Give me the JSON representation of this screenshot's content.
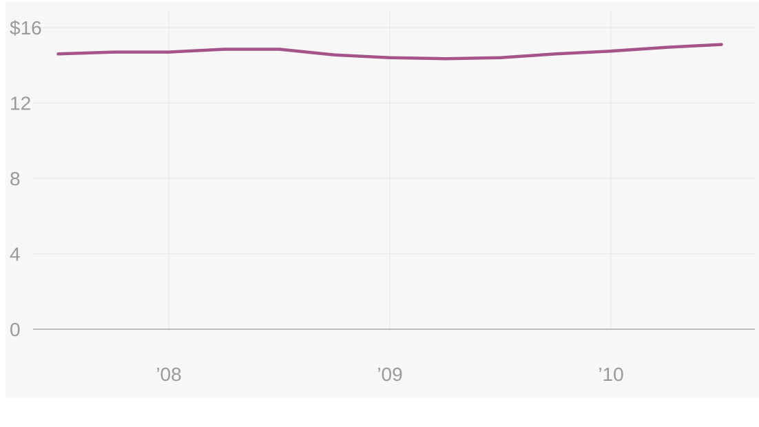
{
  "chart_data": {
    "type": "line",
    "title": "",
    "xlabel": "",
    "ylabel": "",
    "y_unit_prefix": "$",
    "ylim": [
      0,
      16
    ],
    "xlim": [
      2007.5,
      2010.65
    ],
    "yticks": [
      {
        "value": 0,
        "label": "0"
      },
      {
        "value": 4,
        "label": "4"
      },
      {
        "value": 8,
        "label": "8"
      },
      {
        "value": 12,
        "label": "12"
      },
      {
        "value": 16,
        "label": "$16"
      }
    ],
    "xticks": [
      {
        "value": 2008,
        "label": "’08"
      },
      {
        "value": 2009,
        "label": "’09"
      },
      {
        "value": 2010,
        "label": "’10"
      }
    ],
    "grid": true,
    "legend": "none",
    "series": [
      {
        "color": "#a5548a",
        "x": [
          2007.5,
          2007.75,
          2008.0,
          2008.25,
          2008.5,
          2008.75,
          2009.0,
          2009.25,
          2009.5,
          2009.75,
          2010.0,
          2010.25,
          2010.5
        ],
        "values": [
          14.6,
          14.7,
          14.7,
          14.85,
          14.85,
          14.55,
          14.4,
          14.35,
          14.4,
          14.6,
          14.75,
          14.95,
          15.1
        ]
      }
    ]
  }
}
